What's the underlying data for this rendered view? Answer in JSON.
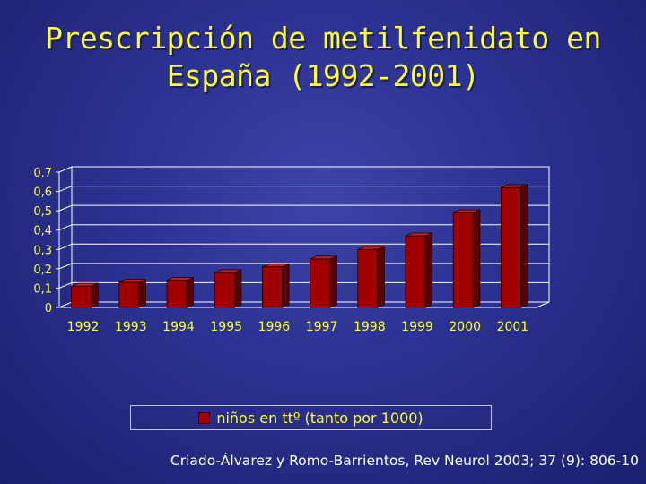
{
  "slide": {
    "title_line1": "Prescripción de metilfenidato en",
    "title_line2": "España (1992-2001)",
    "citation": "Criado-Álvarez y Romo-Barrientos, Rev Neurol 2003; 37 (9): 806-10"
  },
  "colors": {
    "title": "#ffff33",
    "bar_front": "#a00000",
    "tick_labels": "#ffff33",
    "gridlines": "#ffffff"
  },
  "chart_data": {
    "type": "bar",
    "title": "",
    "xlabel": "",
    "ylabel": "",
    "categories": [
      "1992",
      "1993",
      "1994",
      "1995",
      "1996",
      "1997",
      "1998",
      "1999",
      "2000",
      "2001"
    ],
    "series": [
      {
        "name": "niños en ttº (tanto por 1000)",
        "values": [
          0.11,
          0.13,
          0.14,
          0.18,
          0.21,
          0.25,
          0.3,
          0.37,
          0.49,
          0.62
        ]
      }
    ],
    "y_ticks": [
      "0",
      "0,1",
      "0,2",
      "0,3",
      "0,4",
      "0,5",
      "0,6",
      "0,7"
    ],
    "ylim": [
      0,
      0.7
    ],
    "grid": true,
    "style": "3d",
    "legend_position": "bottom"
  }
}
